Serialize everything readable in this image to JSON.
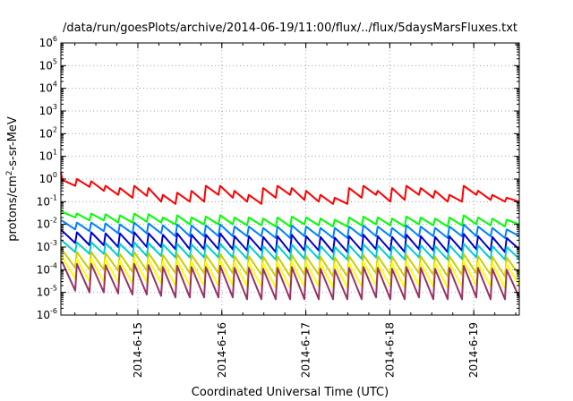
{
  "chart_data": {
    "type": "line",
    "title": "/data/run/goesPlots/archive/2014-06-19/11:00/flux/../flux/5daysMarsFluxes.txt",
    "xlabel": "Coordinated Universal Time (UTC)",
    "ylabel": {
      "base": "protons/cm",
      "sup": "2",
      "rest": "-s-sr-MeV"
    },
    "y_scale": "log",
    "ylim": [
      1e-06,
      1000000.0
    ],
    "y_ticks": [
      {
        "base": "10",
        "exp": "-6"
      },
      {
        "base": "10",
        "exp": "-5"
      },
      {
        "base": "10",
        "exp": "-4"
      },
      {
        "base": "10",
        "exp": "-3"
      },
      {
        "base": "10",
        "exp": "-2"
      },
      {
        "base": "10",
        "exp": "-1"
      },
      {
        "base": "10",
        "exp": "0"
      },
      {
        "base": "10",
        "exp": "1"
      },
      {
        "base": "10",
        "exp": "2"
      },
      {
        "base": "10",
        "exp": "3"
      },
      {
        "base": "10",
        "exp": "4"
      },
      {
        "base": "10",
        "exp": "5"
      },
      {
        "base": "10",
        "exp": "6"
      }
    ],
    "xlim": [
      "2014-06-14 02:00",
      "2014-06-19 13:00"
    ],
    "x_ticks": [
      "2014-6-15",
      "2014-6-16",
      "2014-6-17",
      "2014-6-18",
      "2014-6-19"
    ],
    "grid": true,
    "legend": "none",
    "colors": [
      "#ff0000",
      "#00ff00",
      "#0080ff",
      "#0000cc",
      "#00cccc",
      "#cccc00",
      "#ffff00",
      "#993366"
    ],
    "series": [
      {
        "color": "#ff0000",
        "start": 2.0,
        "cycles": [
          [
            0.9,
            0.5
          ],
          [
            1.0,
            0.45
          ],
          [
            0.8,
            0.3
          ],
          [
            0.5,
            0.2
          ],
          [
            0.4,
            0.15
          ],
          [
            0.5,
            0.18
          ],
          [
            0.4,
            0.1
          ],
          [
            0.2,
            0.08
          ],
          [
            0.25,
            0.1
          ],
          [
            0.3,
            0.1
          ],
          [
            0.5,
            0.2
          ],
          [
            0.5,
            0.15
          ],
          [
            0.3,
            0.1
          ],
          [
            0.2,
            0.08
          ],
          [
            0.4,
            0.15
          ],
          [
            0.5,
            0.2
          ],
          [
            0.4,
            0.12
          ],
          [
            0.3,
            0.1
          ],
          [
            0.2,
            0.08
          ],
          [
            0.15,
            0.08
          ],
          [
            0.4,
            0.15
          ],
          [
            0.5,
            0.2
          ],
          [
            0.3,
            0.1
          ],
          [
            0.4,
            0.12
          ],
          [
            0.5,
            0.2
          ],
          [
            0.4,
            0.15
          ],
          [
            0.3,
            0.1
          ],
          [
            0.2,
            0.1
          ],
          [
            0.5,
            0.2
          ],
          [
            0.3,
            0.12
          ],
          [
            0.2,
            0.1
          ],
          [
            0.15,
            0.1
          ]
        ]
      },
      {
        "color": "#00ff00",
        "start": 0.04,
        "cycles": [
          [
            0.035,
            0.02
          ],
          [
            0.03,
            0.015
          ],
          [
            0.03,
            0.015
          ],
          [
            0.028,
            0.012
          ],
          [
            0.025,
            0.012
          ],
          [
            0.03,
            0.013
          ],
          [
            0.028,
            0.012
          ],
          [
            0.02,
            0.01
          ],
          [
            0.025,
            0.01
          ],
          [
            0.02,
            0.01
          ],
          [
            0.022,
            0.01
          ],
          [
            0.025,
            0.01
          ],
          [
            0.02,
            0.009
          ],
          [
            0.02,
            0.009
          ],
          [
            0.018,
            0.008
          ],
          [
            0.02,
            0.008
          ],
          [
            0.022,
            0.01
          ],
          [
            0.02,
            0.009
          ],
          [
            0.018,
            0.008
          ],
          [
            0.016,
            0.008
          ],
          [
            0.02,
            0.009
          ],
          [
            0.022,
            0.01
          ],
          [
            0.02,
            0.009
          ],
          [
            0.018,
            0.008
          ],
          [
            0.022,
            0.01
          ],
          [
            0.02,
            0.009
          ],
          [
            0.018,
            0.008
          ],
          [
            0.02,
            0.009
          ],
          [
            0.025,
            0.01
          ],
          [
            0.02,
            0.009
          ],
          [
            0.018,
            0.008
          ],
          [
            0.016,
            0.01
          ]
        ]
      },
      {
        "color": "#0080ff",
        "start": 0.015,
        "cycles": [
          [
            0.014,
            0.006
          ],
          [
            0.012,
            0.005
          ],
          [
            0.012,
            0.005
          ],
          [
            0.011,
            0.004
          ],
          [
            0.01,
            0.004
          ],
          [
            0.012,
            0.004
          ],
          [
            0.011,
            0.004
          ],
          [
            0.009,
            0.003
          ],
          [
            0.01,
            0.003
          ],
          [
            0.009,
            0.003
          ],
          [
            0.009,
            0.003
          ],
          [
            0.01,
            0.003
          ],
          [
            0.008,
            0.003
          ],
          [
            0.008,
            0.003
          ],
          [
            0.007,
            0.0025
          ],
          [
            0.008,
            0.0025
          ],
          [
            0.009,
            0.003
          ],
          [
            0.008,
            0.003
          ],
          [
            0.007,
            0.0025
          ],
          [
            0.007,
            0.0025
          ],
          [
            0.008,
            0.003
          ],
          [
            0.009,
            0.003
          ],
          [
            0.008,
            0.003
          ],
          [
            0.007,
            0.0025
          ],
          [
            0.009,
            0.003
          ],
          [
            0.008,
            0.003
          ],
          [
            0.007,
            0.0025
          ],
          [
            0.008,
            0.003
          ],
          [
            0.01,
            0.003
          ],
          [
            0.008,
            0.003
          ],
          [
            0.007,
            0.0025
          ],
          [
            0.006,
            0.003
          ]
        ]
      },
      {
        "color": "#0000cc",
        "start": 0.006,
        "cycles": [
          [
            0.005,
            0.0015
          ],
          [
            0.0045,
            0.0012
          ],
          [
            0.0045,
            0.0012
          ],
          [
            0.004,
            0.001
          ],
          [
            0.004,
            0.001
          ],
          [
            0.0045,
            0.001
          ],
          [
            0.004,
            0.001
          ],
          [
            0.0035,
            0.0008
          ],
          [
            0.004,
            0.0008
          ],
          [
            0.0035,
            0.0008
          ],
          [
            0.0035,
            0.0008
          ],
          [
            0.004,
            0.0008
          ],
          [
            0.003,
            0.0007
          ],
          [
            0.003,
            0.0007
          ],
          [
            0.0028,
            0.0006
          ],
          [
            0.003,
            0.0006
          ],
          [
            0.0035,
            0.0007
          ],
          [
            0.003,
            0.0007
          ],
          [
            0.0028,
            0.0006
          ],
          [
            0.0026,
            0.0006
          ],
          [
            0.003,
            0.0007
          ],
          [
            0.0035,
            0.0008
          ],
          [
            0.003,
            0.0007
          ],
          [
            0.0028,
            0.0006
          ],
          [
            0.0035,
            0.0008
          ],
          [
            0.003,
            0.0007
          ],
          [
            0.0028,
            0.0006
          ],
          [
            0.003,
            0.0007
          ],
          [
            0.0038,
            0.0008
          ],
          [
            0.003,
            0.0007
          ],
          [
            0.0028,
            0.0006
          ],
          [
            0.0025,
            0.0008
          ]
        ]
      },
      {
        "color": "#00cccc",
        "start": 0.002,
        "cycles": [
          [
            0.0018,
            0.0006
          ],
          [
            0.0016,
            0.0005
          ],
          [
            0.0016,
            0.0005
          ],
          [
            0.0015,
            0.0004
          ],
          [
            0.0014,
            0.0004
          ],
          [
            0.0016,
            0.0004
          ],
          [
            0.0015,
            0.0004
          ],
          [
            0.0013,
            0.00035
          ],
          [
            0.0014,
            0.00035
          ],
          [
            0.0013,
            0.00035
          ],
          [
            0.0013,
            0.00035
          ],
          [
            0.0014,
            0.00035
          ],
          [
            0.0012,
            0.0003
          ],
          [
            0.0012,
            0.0003
          ],
          [
            0.0011,
            0.00028
          ],
          [
            0.0012,
            0.00028
          ],
          [
            0.0013,
            0.0003
          ],
          [
            0.0012,
            0.0003
          ],
          [
            0.0011,
            0.00028
          ],
          [
            0.001,
            0.00028
          ],
          [
            0.0012,
            0.0003
          ],
          [
            0.0013,
            0.00035
          ],
          [
            0.0012,
            0.0003
          ],
          [
            0.0011,
            0.00028
          ],
          [
            0.0013,
            0.00035
          ],
          [
            0.0012,
            0.0003
          ],
          [
            0.0011,
            0.00028
          ],
          [
            0.0012,
            0.0003
          ],
          [
            0.0014,
            0.00035
          ],
          [
            0.0012,
            0.0003
          ],
          [
            0.0011,
            0.00028
          ],
          [
            0.001,
            0.0003
          ]
        ]
      },
      {
        "color": "#cccc00",
        "start": 0.0008,
        "cycles": [
          [
            0.0007,
            0.00012
          ],
          [
            0.0006,
            0.0001
          ],
          [
            0.0006,
            0.0001
          ],
          [
            0.00055,
            9e-05
          ],
          [
            0.0005,
            8e-05
          ],
          [
            0.0006,
            9e-05
          ],
          [
            0.00055,
            8e-05
          ],
          [
            0.00045,
            7e-05
          ],
          [
            0.0005,
            7e-05
          ],
          [
            0.00045,
            7e-05
          ],
          [
            0.00045,
            7e-05
          ],
          [
            0.0005,
            7e-05
          ],
          [
            0.0004,
            6e-05
          ],
          [
            0.0004,
            6e-05
          ],
          [
            0.00038,
            5e-05
          ],
          [
            0.0004,
            5e-05
          ],
          [
            0.00045,
            6e-05
          ],
          [
            0.0004,
            6e-05
          ],
          [
            0.00038,
            5e-05
          ],
          [
            0.00035,
            5e-05
          ],
          [
            0.0004,
            6e-05
          ],
          [
            0.00045,
            7e-05
          ],
          [
            0.0004,
            6e-05
          ],
          [
            0.00038,
            5e-05
          ],
          [
            0.00045,
            7e-05
          ],
          [
            0.0004,
            6e-05
          ],
          [
            0.00038,
            5e-05
          ],
          [
            0.0004,
            6e-05
          ],
          [
            0.0005,
            7e-05
          ],
          [
            0.0004,
            6e-05
          ],
          [
            0.00038,
            5e-05
          ],
          [
            0.00035,
            6e-05
          ]
        ]
      },
      {
        "color": "#ffff00",
        "start": 0.0004,
        "cycles": [
          [
            0.00035,
            4e-05
          ],
          [
            0.0003,
            3e-05
          ],
          [
            0.0003,
            3e-05
          ],
          [
            0.00028,
            2.8e-05
          ],
          [
            0.00025,
            2.5e-05
          ],
          [
            0.0003,
            2.8e-05
          ],
          [
            0.00028,
            2.5e-05
          ],
          [
            0.00022,
            2e-05
          ],
          [
            0.00025,
            2e-05
          ],
          [
            0.00022,
            2e-05
          ],
          [
            0.00022,
            2e-05
          ],
          [
            0.00025,
            2e-05
          ],
          [
            0.0002,
            1.8e-05
          ],
          [
            0.0002,
            1.8e-05
          ],
          [
            0.00019,
            1.6e-05
          ],
          [
            0.0002,
            1.6e-05
          ],
          [
            0.00022,
            1.8e-05
          ],
          [
            0.0002,
            1.8e-05
          ],
          [
            0.00019,
            1.6e-05
          ],
          [
            0.00018,
            1.6e-05
          ],
          [
            0.0002,
            1.8e-05
          ],
          [
            0.00022,
            2e-05
          ],
          [
            0.0002,
            1.8e-05
          ],
          [
            0.00019,
            1.6e-05
          ],
          [
            0.00022,
            2e-05
          ],
          [
            0.0002,
            1.8e-05
          ],
          [
            0.00019,
            1.6e-05
          ],
          [
            0.0002,
            1.8e-05
          ],
          [
            0.00025,
            2e-05
          ],
          [
            0.0002,
            1.8e-05
          ],
          [
            0.00019,
            1.6e-05
          ],
          [
            0.00018,
            2e-05
          ]
        ]
      },
      {
        "color": "#993366",
        "start": 0.00025,
        "cycles": [
          [
            0.0002,
            1.2e-05
          ],
          [
            0.00018,
            1e-05
          ],
          [
            0.00018,
            1e-05
          ],
          [
            0.00016,
            9e-06
          ],
          [
            0.00015,
            8e-06
          ],
          [
            0.00018,
            8e-06
          ],
          [
            0.00016,
            7e-06
          ],
          [
            0.00013,
            6e-06
          ],
          [
            0.00015,
            6e-06
          ],
          [
            0.00013,
            6e-06
          ],
          [
            0.00013,
            6e-06
          ],
          [
            0.00015,
            6e-06
          ],
          [
            0.00012,
            5e-06
          ],
          [
            0.00012,
            5e-06
          ],
          [
            0.00011,
            5e-06
          ],
          [
            0.00012,
            5e-06
          ],
          [
            0.00013,
            5e-06
          ],
          [
            0.00012,
            5e-06
          ],
          [
            0.00011,
            5e-06
          ],
          [
            0.0001,
            5e-06
          ],
          [
            0.00012,
            5e-06
          ],
          [
            0.00013,
            6e-06
          ],
          [
            0.00012,
            5e-06
          ],
          [
            0.00011,
            5e-06
          ],
          [
            0.00013,
            6e-06
          ],
          [
            0.00012,
            5e-06
          ],
          [
            0.00011,
            5e-06
          ],
          [
            0.00012,
            5e-06
          ],
          [
            0.00015,
            6e-06
          ],
          [
            0.00012,
            5e-06
          ],
          [
            0.00011,
            5e-06
          ],
          [
            0.0001,
            6e-06
          ]
        ]
      }
    ]
  }
}
